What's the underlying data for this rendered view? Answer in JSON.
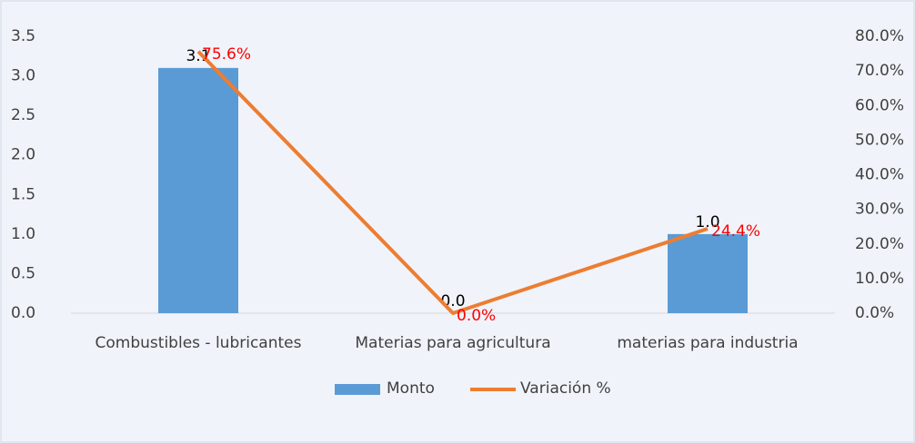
{
  "chart_data": {
    "type": "bar-line",
    "categories": [
      "Combustibles - lubricantes",
      "Materias para agricultura",
      "materias para industria"
    ],
    "series": [
      {
        "name": "Monto",
        "type": "bar",
        "color": "#5b9bd5",
        "values": [
          3.1,
          0,
          1
        ],
        "value_labels": [
          "3.1",
          "0.0",
          "1.0"
        ],
        "label_color": "#000000"
      },
      {
        "name": "Variación %",
        "type": "line",
        "axis": "y2",
        "color": "#ed7d31",
        "values": [
          75.6,
          0,
          24.4
        ],
        "value_labels": [
          "75.6%",
          "0.0%",
          "24.4%"
        ],
        "label_color": "#ff0000"
      }
    ],
    "ylim": [
      0,
      3.5
    ],
    "yticks": [
      {
        "value": 0,
        "label": "0.0"
      },
      0.5,
      {
        "value": 1,
        "label": "1.0"
      },
      1.5,
      {
        "value": 2,
        "label": "2.0"
      },
      2.5,
      {
        "value": 3,
        "label": "3.0"
      },
      3.5
    ],
    "y2lim": [
      0,
      80
    ],
    "y2ticks": [
      {
        "value": 0,
        "label": "0.0%"
      },
      {
        "value": 10,
        "label": "10.0%"
      },
      {
        "value": 20,
        "label": "20.0%"
      },
      {
        "value": 30,
        "label": "30.0%"
      },
      {
        "value": 40,
        "label": "40.0%"
      },
      {
        "value": 50,
        "label": "50.0%"
      },
      {
        "value": 60,
        "label": "60.0%"
      },
      {
        "value": 70,
        "label": "70.0%"
      },
      {
        "value": 80,
        "label": "80.0%"
      }
    ],
    "grid": false,
    "legend": "bottom"
  }
}
